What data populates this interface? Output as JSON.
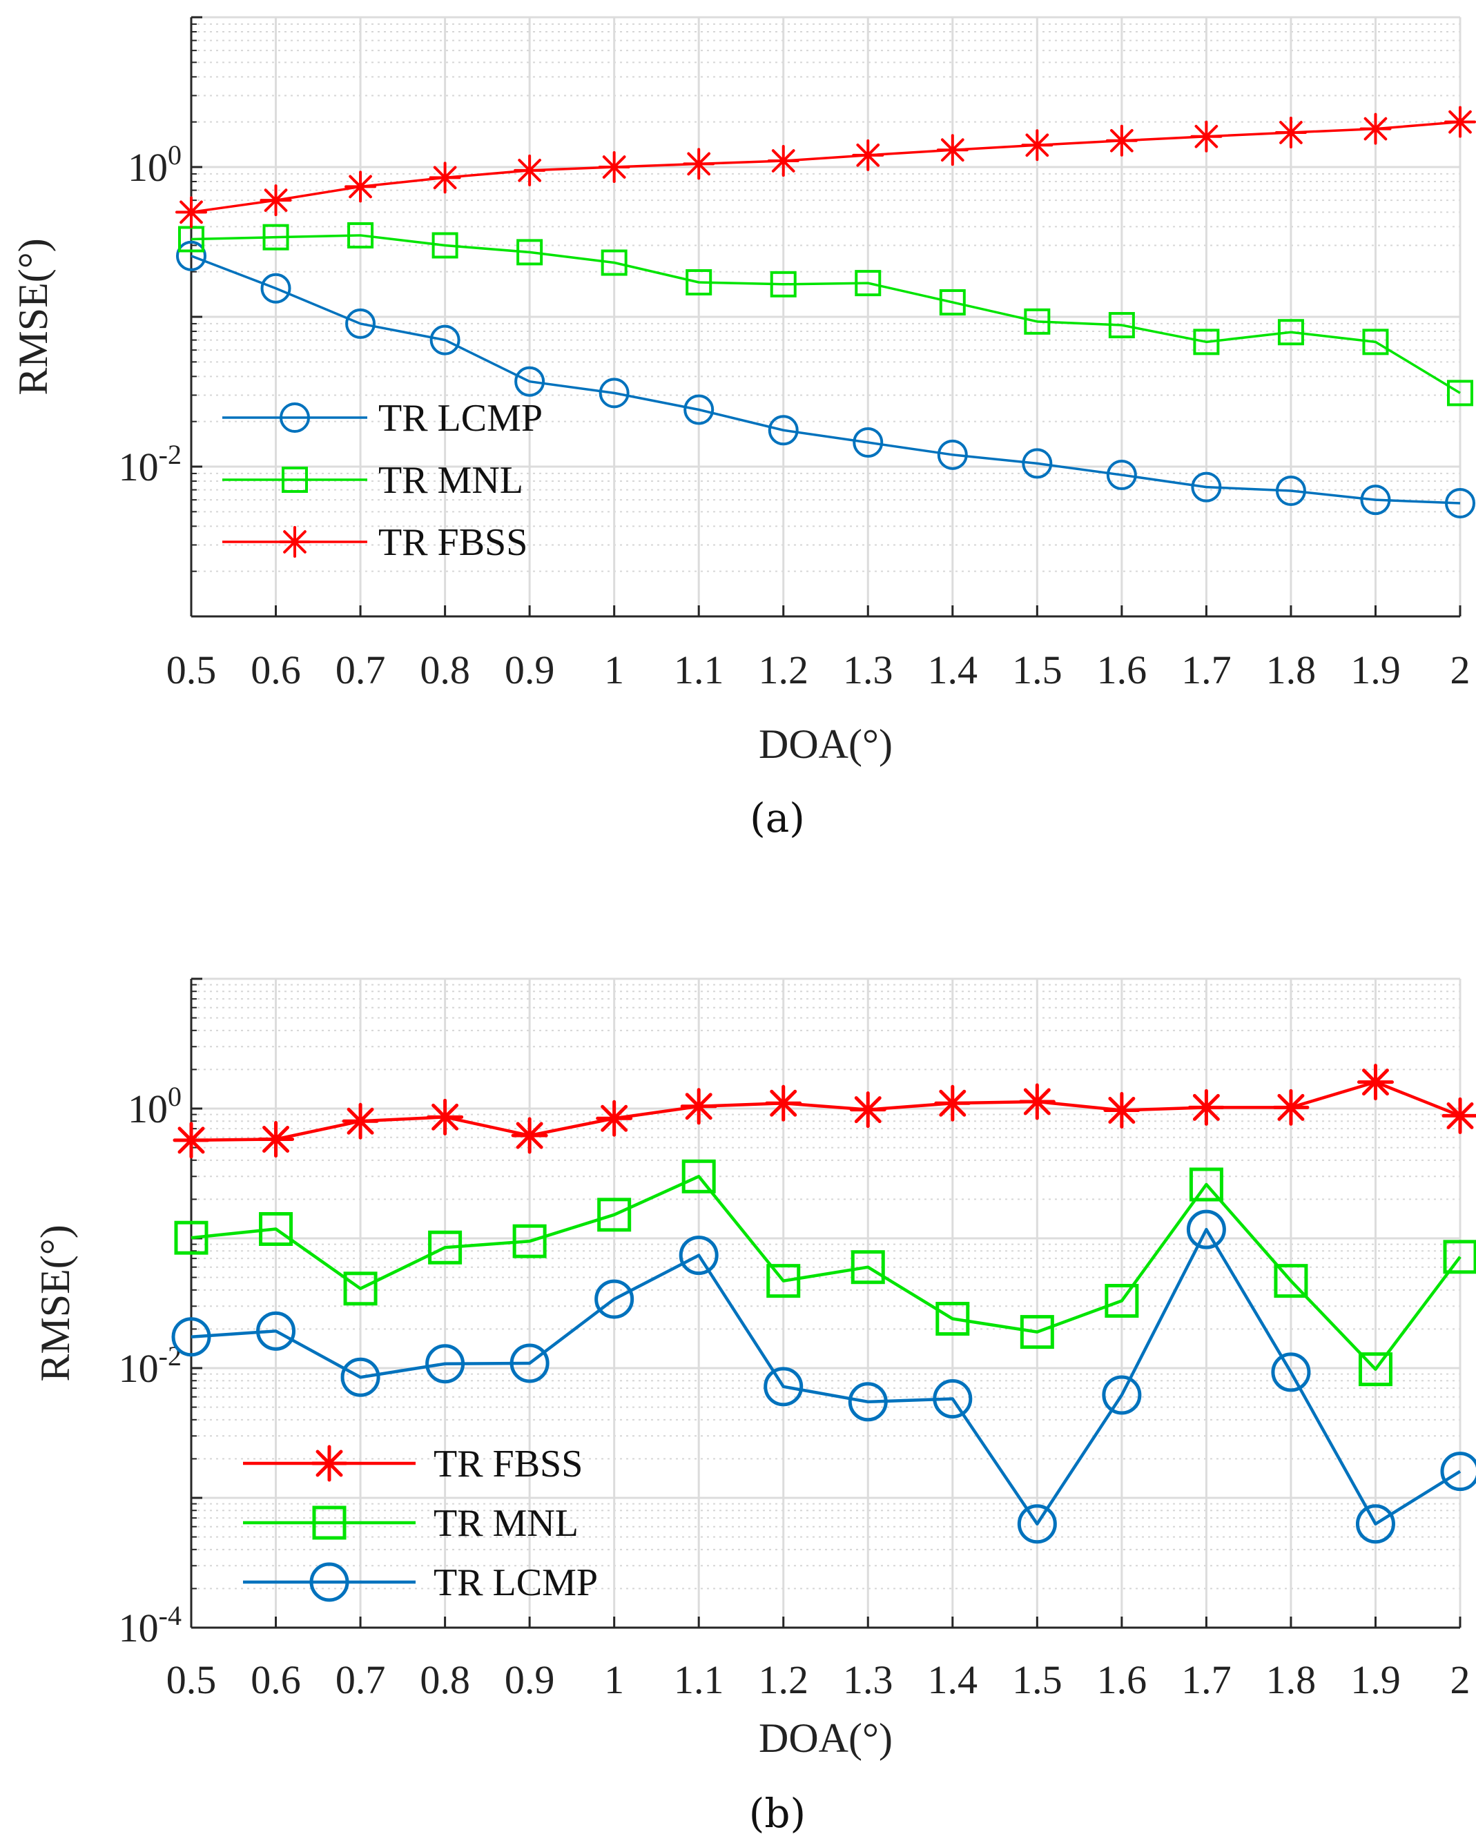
{
  "chart_data": [
    {
      "type": "line",
      "panel": "a",
      "caption": "(a)",
      "xlabel": "DOA(°)",
      "ylabel": "RMSE(°)",
      "yscale": "log",
      "grid": true,
      "legend_position": "bottom-left",
      "x": [
        0.5,
        0.6,
        0.7,
        0.8,
        0.9,
        1,
        1.1,
        1.2,
        1.3,
        1.4,
        1.5,
        1.6,
        1.7,
        1.8,
        1.9,
        2
      ],
      "x_tick_labels": [
        "0.5",
        "0.6",
        "0.7",
        "0.8",
        "0.9",
        "1",
        "1.1",
        "1.2",
        "1.3",
        "1.4",
        "1.5",
        "1.6",
        "1.7",
        "1.8",
        "1.9",
        "2"
      ],
      "ylim": [
        0.001,
        10
      ],
      "y_ticks": [
        {
          "value": 1,
          "base": "10",
          "exp": "0"
        },
        {
          "value": 0.01,
          "base": "10",
          "exp": "-2"
        }
      ],
      "series": [
        {
          "name": "TR LCMP",
          "color": "#0072BD",
          "marker": "circle",
          "values": [
            0.255,
            0.155,
            0.09,
            0.07,
            0.037,
            0.031,
            0.024,
            0.0175,
            0.0145,
            0.012,
            0.0105,
            0.0088,
            0.0073,
            0.0069,
            0.006,
            0.0057
          ]
        },
        {
          "name": "TR MNL",
          "color": "#00E400",
          "marker": "square",
          "values": [
            0.33,
            0.34,
            0.35,
            0.3,
            0.27,
            0.23,
            0.17,
            0.165,
            0.168,
            0.125,
            0.093,
            0.088,
            0.068,
            0.079,
            0.068,
            0.031
          ]
        },
        {
          "name": "TR FBSS",
          "color": "#FF0000",
          "marker": "asterisk",
          "values": [
            0.5,
            0.6,
            0.74,
            0.85,
            0.95,
            1.0,
            1.05,
            1.1,
            1.2,
            1.3,
            1.4,
            1.5,
            1.6,
            1.7,
            1.8,
            2.0
          ]
        }
      ]
    },
    {
      "type": "line",
      "panel": "b",
      "caption": "(b)",
      "xlabel": "DOA(°)",
      "ylabel": "RMSE(°)",
      "yscale": "log",
      "grid": true,
      "legend_position": "bottom-left",
      "x": [
        0.5,
        0.6,
        0.7,
        0.8,
        0.9,
        1,
        1.1,
        1.2,
        1.3,
        1.4,
        1.5,
        1.6,
        1.7,
        1.8,
        1.9,
        2
      ],
      "x_tick_labels": [
        "0.5",
        "0.6",
        "0.7",
        "0.8",
        "0.9",
        "1",
        "1.1",
        "1.2",
        "1.3",
        "1.4",
        "1.5",
        "1.6",
        "1.7",
        "1.8",
        "1.9",
        "2"
      ],
      "ylim": [
        0.0001,
        10
      ],
      "y_ticks": [
        {
          "value": 1,
          "base": "10",
          "exp": "0"
        },
        {
          "value": 0.01,
          "base": "10",
          "exp": "-2"
        },
        {
          "value": 0.0001,
          "base": "10",
          "exp": "-4"
        }
      ],
      "series": [
        {
          "name": "TR FBSS",
          "color": "#FF0000",
          "marker": "asterisk",
          "values": [
            0.57,
            0.58,
            0.8,
            0.86,
            0.62,
            0.84,
            1.04,
            1.1,
            0.98,
            1.1,
            1.13,
            0.97,
            1.02,
            1.02,
            1.6,
            0.88
          ]
        },
        {
          "name": "TR MNL",
          "color": "#00E400",
          "marker": "square",
          "values": [
            0.101,
            0.118,
            0.041,
            0.085,
            0.095,
            0.152,
            0.3,
            0.047,
            0.06,
            0.024,
            0.019,
            0.033,
            0.26,
            0.047,
            0.0098,
            0.072
          ]
        },
        {
          "name": "TR LCMP",
          "color": "#0072BD",
          "marker": "circle",
          "values": [
            0.0174,
            0.0193,
            0.0085,
            0.0108,
            0.0109,
            0.034,
            0.074,
            0.0072,
            0.0055,
            0.0058,
            0.00063,
            0.0062,
            0.117,
            0.0093,
            0.00063,
            0.0016
          ]
        }
      ]
    }
  ]
}
